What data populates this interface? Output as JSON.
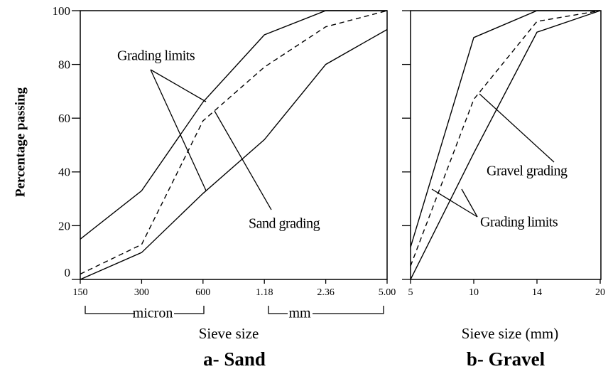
{
  "chart_data": [
    {
      "type": "line",
      "ylabel": "Percentage passing",
      "xlabel": "Sieve size",
      "caption": "a- Sand",
      "unit_labels": [
        "micron",
        "mm"
      ],
      "categories": [
        "150",
        "300",
        "600",
        "1.18",
        "2.36",
        "5.00"
      ],
      "ylim": [
        0,
        100
      ],
      "yticks": [
        0,
        20,
        40,
        60,
        80,
        100
      ],
      "series": [
        {
          "color": "#000000",
          "dashed": false,
          "values": [
            15,
            33,
            66,
            91,
            100,
            100
          ]
        },
        {
          "color": "#000000",
          "dashed": false,
          "values": [
            0,
            10,
            32,
            52,
            80,
            93
          ]
        },
        {
          "color": "#000000",
          "dashed": true,
          "values": [
            2,
            13,
            59,
            79,
            94,
            100
          ]
        }
      ],
      "annotations": [
        "Grading limits",
        "Sand grading"
      ]
    },
    {
      "type": "line",
      "xlabel": "Sieve size (mm)",
      "caption": "b- Gravel",
      "categories": [
        "5",
        "10",
        "14",
        "20"
      ],
      "ylim": [
        0,
        100
      ],
      "yticks": [
        0,
        20,
        40,
        60,
        80,
        100
      ],
      "series": [
        {
          "color": "#000000",
          "dashed": false,
          "values": [
            12,
            90,
            100,
            100
          ]
        },
        {
          "color": "#000000",
          "dashed": false,
          "values": [
            0,
            47,
            92,
            100
          ]
        },
        {
          "color": "#000000",
          "dashed": true,
          "values": [
            5,
            67,
            96,
            100
          ]
        }
      ],
      "annotations": [
        "Gravel grading",
        "Grading limits"
      ]
    }
  ]
}
